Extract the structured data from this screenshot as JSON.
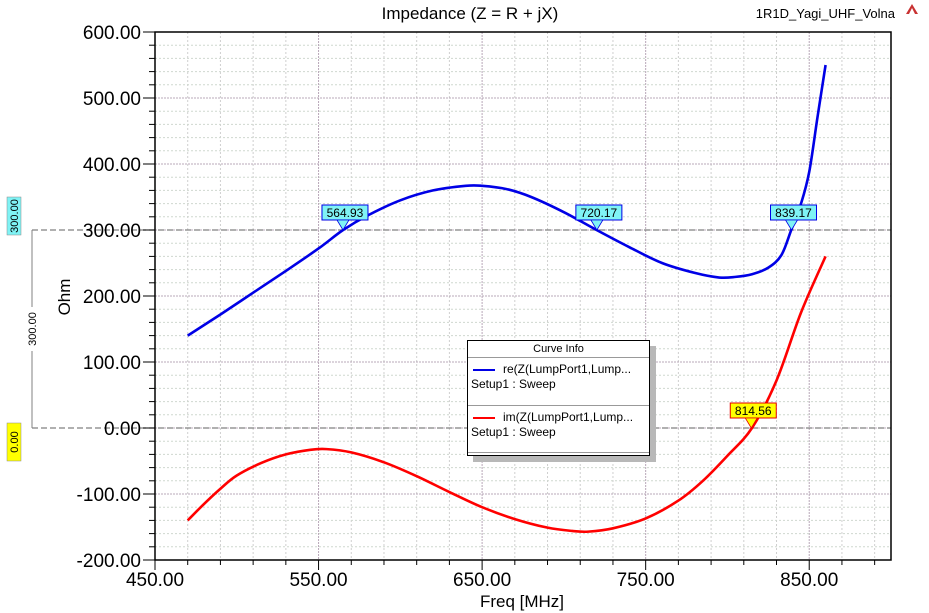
{
  "window": {
    "project_name": "1R1D_Yagi_UHF_Volna",
    "logo_icon": "ansys-logo-icon"
  },
  "chart_data": {
    "type": "line",
    "title": "Impedance (Z = R + jX)",
    "xlabel": "Freq [MHz]",
    "ylabel": "Ohm",
    "xlim": [
      450,
      900
    ],
    "ylim": [
      -200,
      600
    ],
    "grid": true,
    "x_ticks": [
      "450.00",
      "550.00",
      "650.00",
      "750.00",
      "850.00"
    ],
    "x_tick_values": [
      450,
      550,
      650,
      750,
      850
    ],
    "y_ticks": [
      "600.00",
      "500.00",
      "400.00",
      "300.00",
      "200.00",
      "100.00",
      "0.00",
      "-100.00",
      "-200.00"
    ],
    "y_tick_values": [
      600,
      500,
      400,
      300,
      200,
      100,
      0,
      -100,
      -200
    ],
    "series": [
      {
        "name": "re(Z(LumpPort1,Lump...",
        "setup": "Setup1 : Sweep",
        "color": "#0000e6",
        "x": [
          470,
          490,
          510,
          530,
          550,
          565,
          580,
          600,
          620,
          640,
          650,
          665,
          680,
          700,
          720,
          740,
          760,
          780,
          795,
          805,
          815,
          825,
          833,
          839,
          845,
          850,
          855,
          860
        ],
        "y": [
          140,
          172,
          205,
          238,
          272,
          300,
          322,
          345,
          360,
          367,
          367,
          362,
          350,
          327,
          300,
          274,
          250,
          235,
          228,
          229,
          233,
          243,
          262,
          300,
          340,
          388,
          470,
          550
        ]
      },
      {
        "name": "im(Z(LumpPort1,Lump...",
        "setup": "Setup1 : Sweep",
        "color": "#ff0000",
        "x": [
          470,
          480,
          490,
          500,
          515,
          530,
          545,
          555,
          570,
          590,
          610,
          630,
          650,
          670,
          690,
          705,
          715,
          730,
          750,
          770,
          785,
          800,
          815,
          830,
          845,
          860
        ],
        "y": [
          -140,
          -115,
          -92,
          -72,
          -53,
          -40,
          -33,
          -32,
          -37,
          -52,
          -73,
          -97,
          -120,
          -138,
          -151,
          -156,
          -157,
          -152,
          -137,
          -110,
          -80,
          -42,
          0,
          72,
          175,
          260
        ]
      }
    ],
    "markers": [
      {
        "label": "564.93",
        "x": 564.93,
        "y": 300,
        "series": "re",
        "bg": "#7ff3f5"
      },
      {
        "label": "720.17",
        "x": 720.17,
        "y": 300,
        "series": "re",
        "bg": "#7ff3f5"
      },
      {
        "label": "839.17",
        "x": 839.17,
        "y": 300,
        "series": "re",
        "bg": "#7ff3f5"
      },
      {
        "label": "814.56",
        "x": 814.56,
        "y": 0,
        "series": "im",
        "bg": "#ffff00"
      }
    ],
    "reference_lines": [
      {
        "y": 300,
        "label": "300.00",
        "bg": "#7ff3f5"
      },
      {
        "y": 0,
        "label": "0.00",
        "bg": "#ffff00"
      }
    ],
    "delta_label": "300.00",
    "legend": {
      "title": "Curve Info",
      "placement": "center"
    }
  }
}
